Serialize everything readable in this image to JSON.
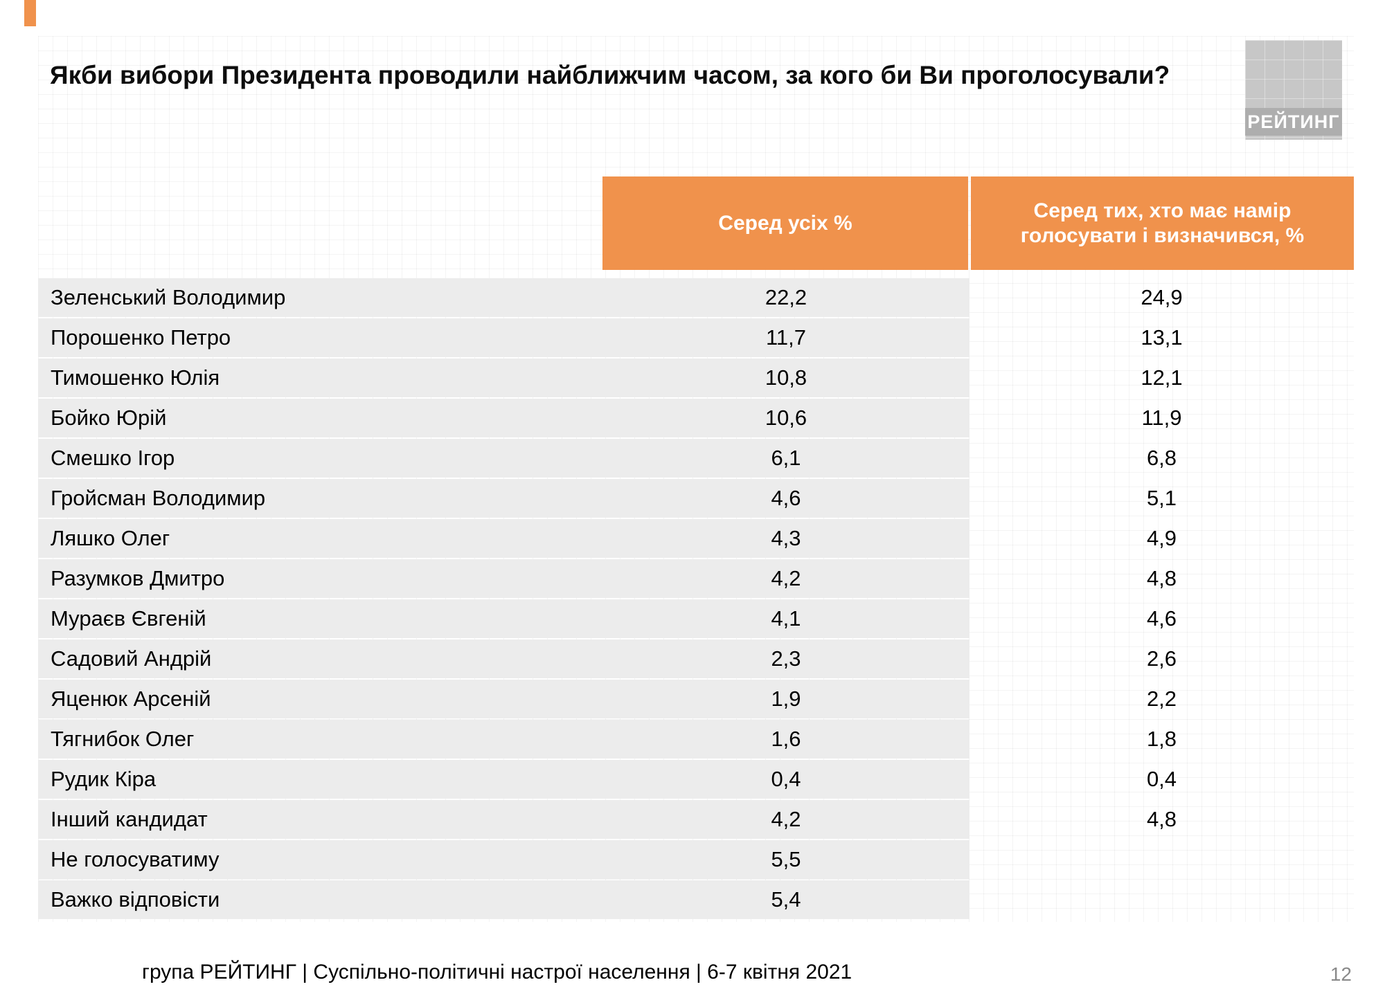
{
  "colors": {
    "accent": "#F0924C",
    "row_gray": "#ECECEC",
    "logo_gray": "#C7C7C7"
  },
  "logo": {
    "label": "РЕЙТИНГ"
  },
  "chart_data": {
    "type": "table",
    "title": "Якби вибори Президента проводили найближчим часом, за кого би Ви проголосували?",
    "columns": [
      "Серед усіх %",
      "Серед тих, хто має намір голосувати і визначився, %"
    ],
    "rows": [
      {
        "name": "Зеленський Володимир",
        "among_all": "22,2",
        "among_decided": "24,9"
      },
      {
        "name": "Порошенко Петро",
        "among_all": "11,7",
        "among_decided": "13,1"
      },
      {
        "name": "Тимошенко Юлія",
        "among_all": "10,8",
        "among_decided": "12,1"
      },
      {
        "name": "Бойко Юрій",
        "among_all": "10,6",
        "among_decided": "11,9"
      },
      {
        "name": "Смешко Ігор",
        "among_all": "6,1",
        "among_decided": "6,8"
      },
      {
        "name": "Гройсман Володимир",
        "among_all": "4,6",
        "among_decided": "5,1"
      },
      {
        "name": "Ляшко Олег",
        "among_all": "4,3",
        "among_decided": "4,9"
      },
      {
        "name": "Разумков Дмитро",
        "among_all": "4,2",
        "among_decided": "4,8"
      },
      {
        "name": "Мураєв Євгеній",
        "among_all": "4,1",
        "among_decided": "4,6"
      },
      {
        "name": "Садовий Андрій",
        "among_all": "2,3",
        "among_decided": "2,6"
      },
      {
        "name": "Яценюк Арсеній",
        "among_all": "1,9",
        "among_decided": "2,2"
      },
      {
        "name": "Тягнибок Олег",
        "among_all": "1,6",
        "among_decided": "1,8"
      },
      {
        "name": "Рудик Кіра",
        "among_all": "0,4",
        "among_decided": "0,4"
      },
      {
        "name": "Інший кандидат",
        "among_all": "4,2",
        "among_decided": "4,8"
      },
      {
        "name": "Не голосуватиму",
        "among_all": "5,5",
        "among_decided": ""
      },
      {
        "name": "Важко відповісти",
        "among_all": "5,4",
        "among_decided": ""
      }
    ]
  },
  "footer": {
    "text": "група РЕЙТИНГ | Суспільно-політичні настрої населення | 6-7 квітня 2021",
    "page_number": "12"
  }
}
